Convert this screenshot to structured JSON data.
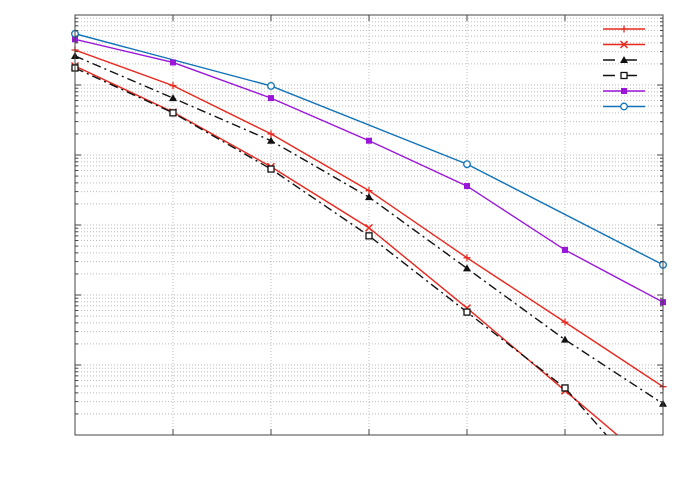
{
  "chart_data": {
    "type": "line",
    "title": "",
    "xlabel": "",
    "ylabel": "",
    "x_scale": "linear",
    "y_scale": "log",
    "xlim": [
      0,
      6
    ],
    "ylim": [
      1e-06,
      1
    ],
    "grid": true,
    "legend_position": "top-right",
    "series": [
      {
        "marker": "plus",
        "color": "#e8281e",
        "dash": "solid",
        "x": [
          0,
          1,
          2,
          3,
          4,
          5,
          6
        ],
        "values": [
          0.316,
          0.098,
          0.02,
          0.0031,
          0.00034,
          4.1e-05,
          4.9e-06
        ]
      },
      {
        "marker": "cross",
        "color": "#e8281e",
        "dash": "solid",
        "x": [
          0,
          1,
          2,
          3,
          4,
          5,
          6
        ],
        "values": [
          0.187,
          0.041,
          0.0068,
          0.00091,
          6.5e-05,
          4.3e-06,
          2.8e-07
        ]
      },
      {
        "marker": "triangle",
        "color": "#111111",
        "dash": "dashdot",
        "x": [
          0,
          1,
          2,
          3,
          4,
          5,
          6
        ],
        "values": [
          0.26,
          0.065,
          0.016,
          0.0025,
          0.00024,
          2.3e-05,
          2.8e-06
        ]
      },
      {
        "marker": "square-open",
        "color": "#111111",
        "dash": "dashdot",
        "x": [
          0,
          1,
          2,
          3,
          4,
          5,
          6
        ],
        "values": [
          0.175,
          0.04,
          0.0063,
          0.0007,
          5.7e-05,
          4.7e-06,
          1.2e-07
        ]
      },
      {
        "marker": "square-filled",
        "color": "#9a16d8",
        "dash": "solid",
        "x": [
          0,
          1,
          2,
          3,
          4,
          5,
          6
        ],
        "values": [
          0.45,
          0.21,
          0.065,
          0.016,
          0.0036,
          0.00044,
          7.9e-05
        ]
      },
      {
        "marker": "circle",
        "color": "#1273b8",
        "dash": "solid",
        "x": [
          0,
          2,
          4,
          6
        ],
        "values": [
          0.54,
          0.097,
          0.0074,
          0.00027
        ]
      }
    ]
  }
}
